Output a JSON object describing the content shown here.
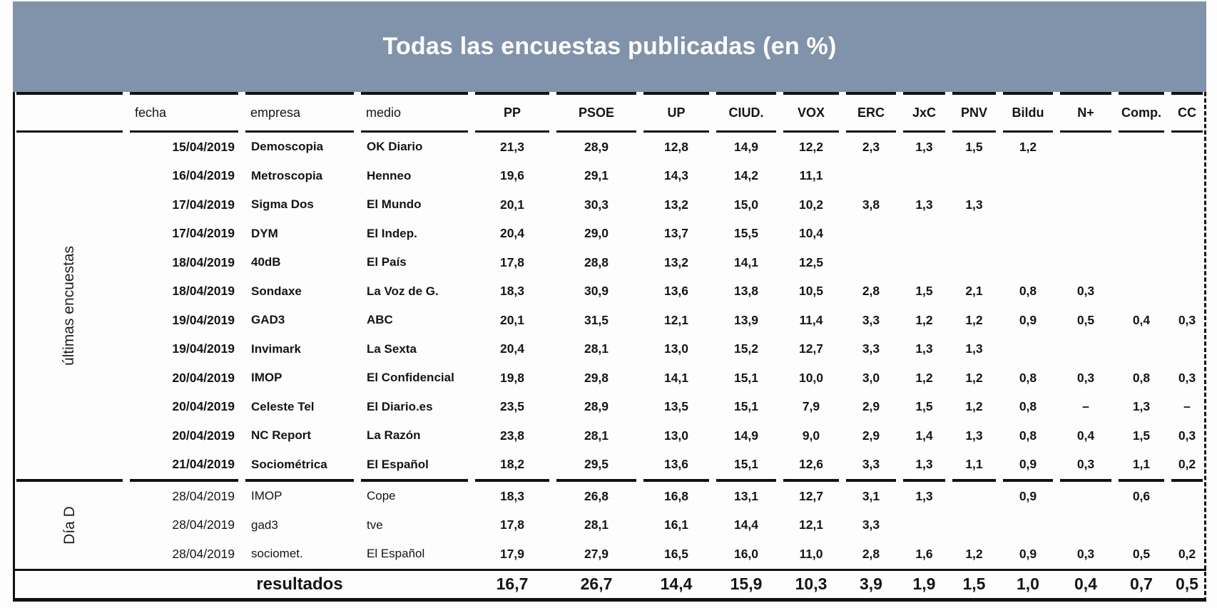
{
  "colors": {
    "header_band": "#8193ab",
    "title_text": "#ffffff",
    "results_red": "#b32424",
    "table_lines": "#111111",
    "table_text": "#151515"
  },
  "chart_data": {
    "type": "table",
    "title": "Todas las encuestas publicadas (en %)",
    "columns": [
      "fecha",
      "empresa",
      "medio",
      "PP",
      "PSOE",
      "UP",
      "CIUD.",
      "VOX",
      "ERC",
      "JxC",
      "PNV",
      "Bildu",
      "N+",
      "Comp.",
      "CC"
    ],
    "sections": [
      {
        "label": "últimas encuestas",
        "rows": [
          [
            "15/04/2019",
            "Demoscopia",
            "OK Diario",
            "21,3",
            "28,9",
            "12,8",
            "14,9",
            "12,2",
            "2,3",
            "1,3",
            "1,5",
            "1,2",
            "",
            "",
            ""
          ],
          [
            "16/04/2019",
            "Metroscopia",
            "Henneo",
            "19,6",
            "29,1",
            "14,3",
            "14,2",
            "11,1",
            "",
            "",
            "",
            "",
            "",
            "",
            ""
          ],
          [
            "17/04/2019",
            "Sigma Dos",
            "El Mundo",
            "20,1",
            "30,3",
            "13,2",
            "15,0",
            "10,2",
            "3,8",
            "1,3",
            "1,3",
            "",
            "",
            "",
            ""
          ],
          [
            "17/04/2019",
            "DYM",
            "El Indep.",
            "20,4",
            "29,0",
            "13,7",
            "15,5",
            "10,4",
            "",
            "",
            "",
            "",
            "",
            "",
            ""
          ],
          [
            "18/04/2019",
            "40dB",
            "El País",
            "17,8",
            "28,8",
            "13,2",
            "14,1",
            "12,5",
            "",
            "",
            "",
            "",
            "",
            "",
            ""
          ],
          [
            "18/04/2019",
            "Sondaxe",
            "La Voz de G.",
            "18,3",
            "30,9",
            "13,6",
            "13,8",
            "10,5",
            "2,8",
            "1,5",
            "2,1",
            "0,8",
            "0,3",
            "",
            ""
          ],
          [
            "19/04/2019",
            "GAD3",
            "ABC",
            "20,1",
            "31,5",
            "12,1",
            "13,9",
            "11,4",
            "3,3",
            "1,2",
            "1,2",
            "0,9",
            "0,5",
            "0,4",
            "0,3"
          ],
          [
            "19/04/2019",
            "Invimark",
            "La Sexta",
            "20,4",
            "28,1",
            "13,0",
            "15,2",
            "12,7",
            "3,3",
            "1,3",
            "1,3",
            "",
            "",
            "",
            ""
          ],
          [
            "20/04/2019",
            "IMOP",
            "El Confidencial",
            "19,8",
            "29,8",
            "14,1",
            "15,1",
            "10,0",
            "3,0",
            "1,2",
            "1,2",
            "0,8",
            "0,3",
            "0,8",
            "0,3"
          ],
          [
            "20/04/2019",
            "Celeste Tel",
            "El Diario.es",
            "23,5",
            "28,9",
            "13,5",
            "15,1",
            "7,9",
            "2,9",
            "1,5",
            "1,2",
            "0,8",
            "–",
            "1,3",
            "–"
          ],
          [
            "20/04/2019",
            "NC Report",
            "La Razón",
            "23,8",
            "28,1",
            "13,0",
            "14,9",
            "9,0",
            "2,9",
            "1,4",
            "1,3",
            "0,8",
            "0,4",
            "1,5",
            "0,3"
          ],
          [
            "21/04/2019",
            "Sociométrica",
            "El Español",
            "18,2",
            "29,5",
            "13,6",
            "15,1",
            "12,6",
            "3,3",
            "1,3",
            "1,1",
            "0,9",
            "0,3",
            "1,1",
            "0,2"
          ]
        ]
      },
      {
        "label": "Día D",
        "rows": [
          [
            "28/04/2019",
            "IMOP",
            "Cope",
            "18,3",
            "26,8",
            "16,8",
            "13,1",
            "12,7",
            "3,1",
            "1,3",
            "",
            "0,9",
            "",
            "0,6",
            ""
          ],
          [
            "28/04/2019",
            "gad3",
            "tve",
            "17,8",
            "28,1",
            "16,1",
            "14,4",
            "12,1",
            "3,3",
            "",
            "",
            "",
            "",
            "",
            ""
          ],
          [
            "28/04/2019",
            "sociomet.",
            "El Español",
            "17,9",
            "27,9",
            "16,5",
            "16,0",
            "11,0",
            "2,8",
            "1,6",
            "1,2",
            "0,9",
            "0,3",
            "0,5",
            "0,2"
          ]
        ]
      }
    ],
    "results_row": {
      "label": "resultados",
      "values": [
        "16,7",
        "26,7",
        "14,4",
        "15,9",
        "10,3",
        "3,9",
        "1,9",
        "1,5",
        "1,0",
        "0,4",
        "0,7",
        "0,5"
      ]
    }
  }
}
